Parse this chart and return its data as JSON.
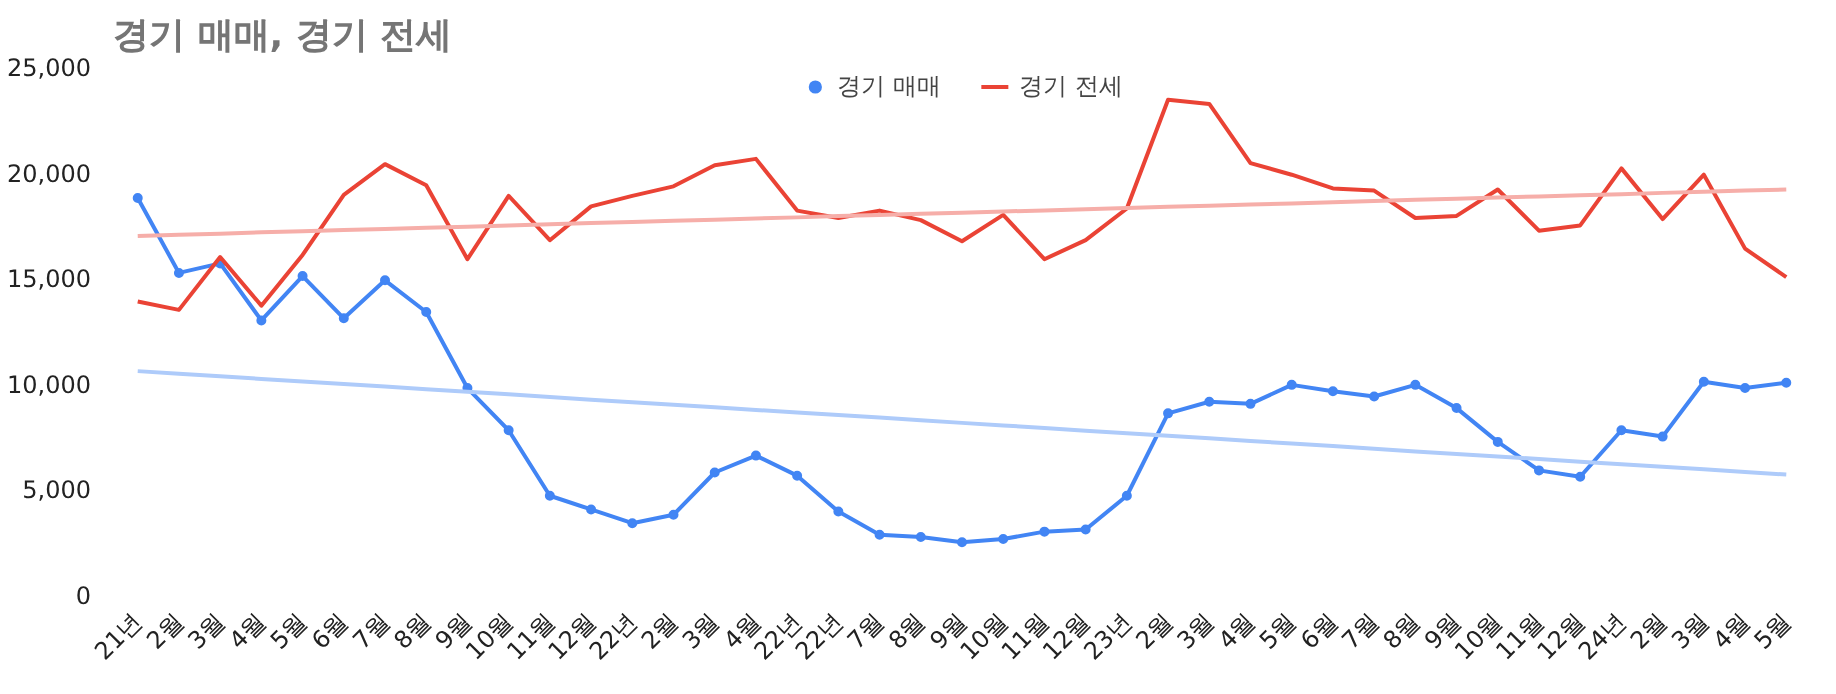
{
  "chart_data": {
    "type": "line",
    "title": "경기 매매, 경기 전세",
    "categories": [
      "21년",
      "2월",
      "3월",
      "4월",
      "5월",
      "6월",
      "7월",
      "8월",
      "9월",
      "10월",
      "11월",
      "12월",
      "22년",
      "2월",
      "3월",
      "4월",
      "22년",
      "22년",
      "7월",
      "8월",
      "9월",
      "10월",
      "11월",
      "12월",
      "23년",
      "2월",
      "3월",
      "4월",
      "5월",
      "6월",
      "7월",
      "8월",
      "9월",
      "10월",
      "11월",
      "12월",
      "24년",
      "2월",
      "3월",
      "4월",
      "5월"
    ],
    "series": [
      {
        "name": "경기 매매",
        "color": "#4285f4",
        "marker": "circle",
        "values": [
          18800,
          15250,
          15700,
          13000,
          15100,
          13100,
          14900,
          13400,
          9800,
          7800,
          4700,
          4050,
          3400,
          3800,
          5800,
          6600,
          5650,
          3950,
          2850,
          2750,
          2500,
          2650,
          3000,
          3100,
          4700,
          8600,
          9150,
          9050,
          9950,
          9650,
          9400,
          9950,
          8850,
          7250,
          5900,
          5600,
          7800,
          7500,
          10100,
          9800,
          10050
        ]
      },
      {
        "name": "경기 전세",
        "color": "#ea4335",
        "marker": "none",
        "values": [
          13900,
          13500,
          16000,
          13700,
          16100,
          18950,
          20400,
          19400,
          15900,
          18900,
          16800,
          18400,
          18900,
          19350,
          20350,
          20650,
          18200,
          17850,
          18200,
          17750,
          16750,
          18000,
          15900,
          16800,
          18300,
          23450,
          23250,
          20450,
          19900,
          19250,
          19150,
          17850,
          17950,
          19200,
          17250,
          17500,
          20200,
          17800,
          19900,
          16400,
          15050
        ]
      },
      {
        "color": "#aecbfa",
        "marker": "none",
        "values": [
          10600,
          10480,
          10360,
          10230,
          10110,
          9990,
          9870,
          9740,
          9620,
          9500,
          9380,
          9250,
          9130,
          9010,
          8890,
          8760,
          8640,
          8520,
          8400,
          8270,
          8150,
          8030,
          7910,
          7780,
          7660,
          7540,
          7420,
          7290,
          7170,
          7050,
          6930,
          6800,
          6680,
          6560,
          6440,
          6310,
          6190,
          6070,
          5950,
          5820,
          5700
        ]
      },
      {
        "color": "#f6aea9",
        "marker": "none",
        "values": [
          17000,
          17060,
          17110,
          17170,
          17220,
          17280,
          17330,
          17390,
          17440,
          17500,
          17550,
          17610,
          17660,
          17720,
          17770,
          17830,
          17880,
          17940,
          17990,
          18050,
          18100,
          18160,
          18210,
          18270,
          18320,
          18380,
          18430,
          18490,
          18540,
          18600,
          18650,
          18710,
          18760,
          18820,
          18870,
          18930,
          18980,
          19040,
          19090,
          19150,
          19200
        ]
      }
    ],
    "ylim": [
      0,
      25000
    ],
    "yticks": [
      {
        "value": 0,
        "label": "0"
      },
      {
        "value": 5000,
        "label": "5,000"
      },
      {
        "value": 10000,
        "label": "10,000"
      },
      {
        "value": 15000,
        "label": "15,000"
      },
      {
        "value": 20000,
        "label": "20,000"
      },
      {
        "value": 25000,
        "label": "25,000"
      }
    ],
    "grid": false,
    "legend": "top"
  }
}
